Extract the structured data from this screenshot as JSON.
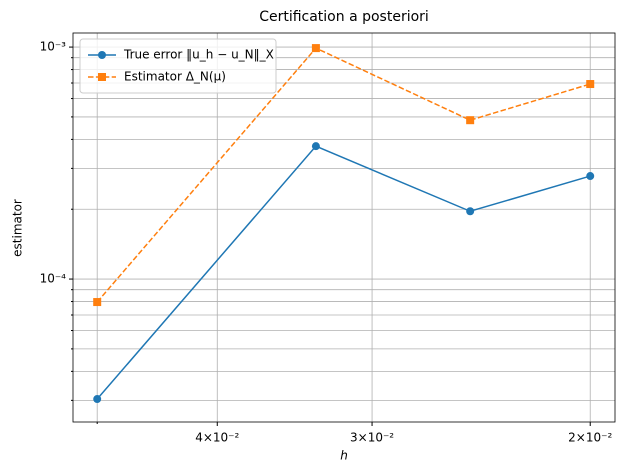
{
  "chart_data": {
    "type": "line",
    "title": "Certification a posteriori",
    "xlabel": "h",
    "ylabel": "estimator",
    "x": [
      0.05,
      0.0333,
      0.025,
      0.02
    ],
    "series": [
      {
        "name": "True error ‖u_h − u_N‖_X",
        "color": "#1f77b4",
        "marker": "circle",
        "linestyle": "solid",
        "values": [
          3.04e-05,
          0.000374,
          0.000196,
          0.000278
        ]
      },
      {
        "name": "Estimator Δ_N(μ)",
        "color": "#ff7f0e",
        "marker": "square",
        "linestyle": "dashed",
        "values": [
          7.96e-05,
          0.00099,
          0.000484,
          0.000693
        ]
      }
    ],
    "xscale": "log",
    "yscale": "log",
    "xlim": [
      0.0523,
      0.0191
    ],
    "ylim": [
      2.42e-05,
      0.00115
    ],
    "xticks": [
      {
        "value": 0.04,
        "label": "4×10⁻²"
      },
      {
        "value": 0.03,
        "label": "3×10⁻²"
      },
      {
        "value": 0.02,
        "label": "2×10⁻²"
      }
    ],
    "minor_xticks": [
      0.05
    ],
    "yticks": [
      {
        "value": 0.0001,
        "label": "10⁻⁴"
      },
      {
        "value": 0.001,
        "label": "10⁻³"
      }
    ],
    "minor_yticks": [
      3e-05,
      4e-05,
      5e-05,
      6e-05,
      7e-05,
      8e-05,
      9e-05,
      0.0002,
      0.0003,
      0.0004,
      0.0005,
      0.0006,
      0.0007,
      0.0008,
      0.0009
    ],
    "grid": true,
    "legend": "upper left"
  }
}
